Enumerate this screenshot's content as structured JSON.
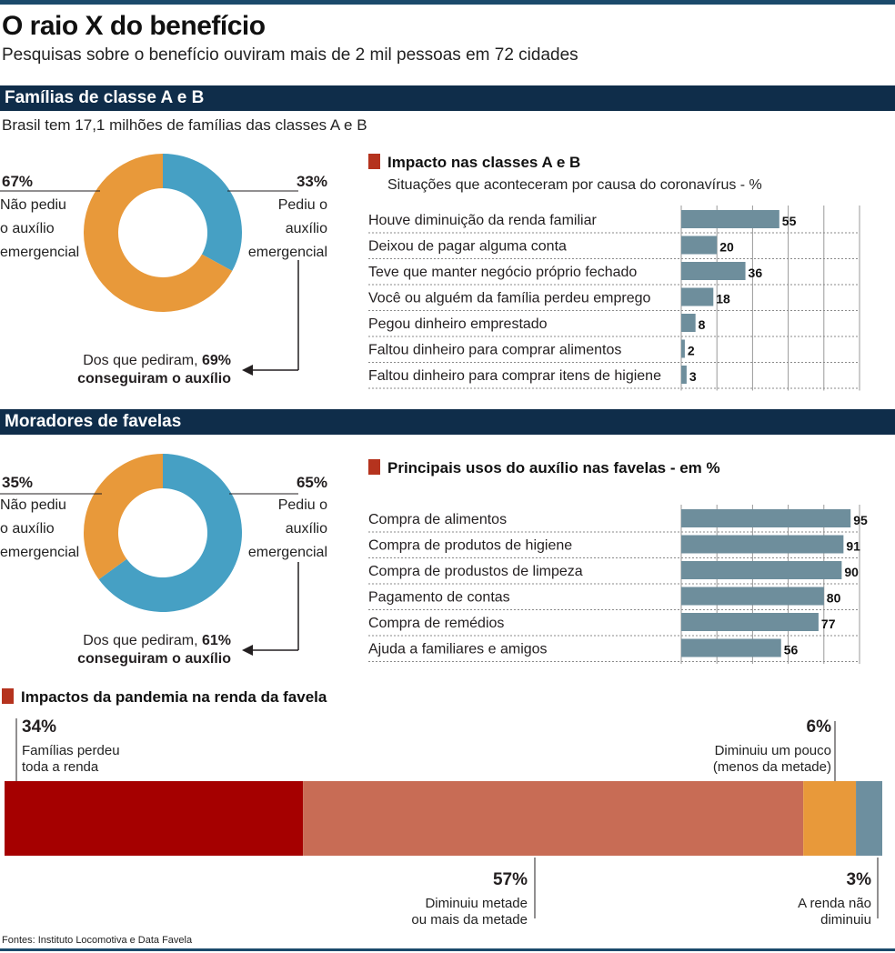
{
  "header": {
    "title": "O raio X do benefício",
    "subtitle": "Pesquisas sobre o benefício ouviram mais de 2 mil pessoas em 72 cidades"
  },
  "section1": {
    "title": "Famílias de classe A e B",
    "subtitle": "Brasil tem 17,1 milhões de famílias das classes A e B",
    "donut": {
      "left_pct": "67%",
      "left_label": [
        "Não pediu",
        "o auxílio",
        "emergencial"
      ],
      "right_pct": "33%",
      "right_label": [
        "Pediu o",
        "auxílio",
        "emergencial"
      ],
      "note_prefix": "Dos que pediram,",
      "note_pct": "69%",
      "note_suffix": "conseguiram o auxílio"
    },
    "bars_title": "Impacto nas classes A e B",
    "bars_subtitle": "Situações que aconteceram por causa do coronavírus - %"
  },
  "section2": {
    "title": "Moradores de favelas",
    "donut": {
      "left_pct": "35%",
      "left_label": [
        "Não pediu",
        "o auxílio",
        "emergencial"
      ],
      "right_pct": "65%",
      "right_label": [
        "Pediu o",
        "auxílio",
        "emergencial"
      ],
      "note_prefix": "Dos que pediram,",
      "note_pct": "61%",
      "note_suffix": "conseguiram o auxílio"
    },
    "bars_title": "Principais usos do auxílio nas favelas - em %"
  },
  "section3": {
    "title": "Impactos da pandemia na renda da favela",
    "labels": {
      "a_pct": "34%",
      "a_text": [
        "Famílias perdeu",
        "toda a renda"
      ],
      "b_pct": "57%",
      "b_text": [
        "Diminuiu metade",
        "ou mais da metade"
      ],
      "c_pct": "6%",
      "c_text": [
        "Diminuiu um pouco",
        "(menos da metade)"
      ],
      "d_pct": "3%",
      "d_text": [
        "A renda não",
        "diminuiu"
      ]
    }
  },
  "footer": "Fontes: Instituto Locomotiva e Data Favela",
  "colors": {
    "orange": "#e8993a",
    "blue": "#46a0c4",
    "bar": "#6e8e9c",
    "navy": "#0f2d4a",
    "dark_red": "#a50000",
    "terracotta": "#c86c55",
    "slate": "#6d8f9f"
  },
  "chart_data": [
    {
      "type": "pie",
      "title": "",
      "labels": [
        "Não pediu o auxílio emergencial",
        "Pediu o auxílio emergencial"
      ],
      "values": [
        67,
        33
      ],
      "colors": [
        "#e8993a",
        "#46a0c4"
      ]
    },
    {
      "type": "bar",
      "orientation": "horizontal",
      "title": "Impacto nas classes A e B",
      "categories": [
        "Houve diminuição da renda familiar",
        "Deixou de pagar alguma conta",
        "Teve que manter negócio próprio fechado",
        "Você ou alguém da família perdeu emprego",
        "Pegou dinheiro emprestado",
        "Faltou dinheiro para comprar alimentos",
        "Faltou dinheiro para comprar itens de higiene"
      ],
      "values": [
        55,
        20,
        36,
        18,
        8,
        2,
        3
      ],
      "xlim": [
        0,
        100
      ],
      "grid": true
    },
    {
      "type": "pie",
      "title": "",
      "labels": [
        "Não pediu o auxílio emergencial",
        "Pediu o auxílio emergencial"
      ],
      "values": [
        35,
        65
      ],
      "colors": [
        "#e8993a",
        "#46a0c4"
      ]
    },
    {
      "type": "bar",
      "orientation": "horizontal",
      "title": "Principais usos do auxílio nas favelas - em %",
      "categories": [
        "Compra de alimentos",
        "Compra de produtos de higiene",
        "Compra de produstos de limpeza",
        "Pagamento de contas",
        "Compra de remédios",
        "Ajuda a familiares e amigos"
      ],
      "values": [
        95,
        91,
        90,
        80,
        77,
        56
      ],
      "xlim": [
        0,
        100
      ],
      "grid": true
    },
    {
      "type": "bar",
      "orientation": "stacked-horizontal",
      "title": "Impactos da pandemia na renda da favela",
      "categories": [
        "Famílias perdeu toda a renda",
        "Diminuiu metade ou mais da metade",
        "Diminuiu um pouco (menos da metade)",
        "A renda não diminuiu"
      ],
      "values": [
        34,
        57,
        6,
        3
      ],
      "colors": [
        "#a50000",
        "#c86c55",
        "#e8993a",
        "#6d8f9f"
      ]
    }
  ]
}
